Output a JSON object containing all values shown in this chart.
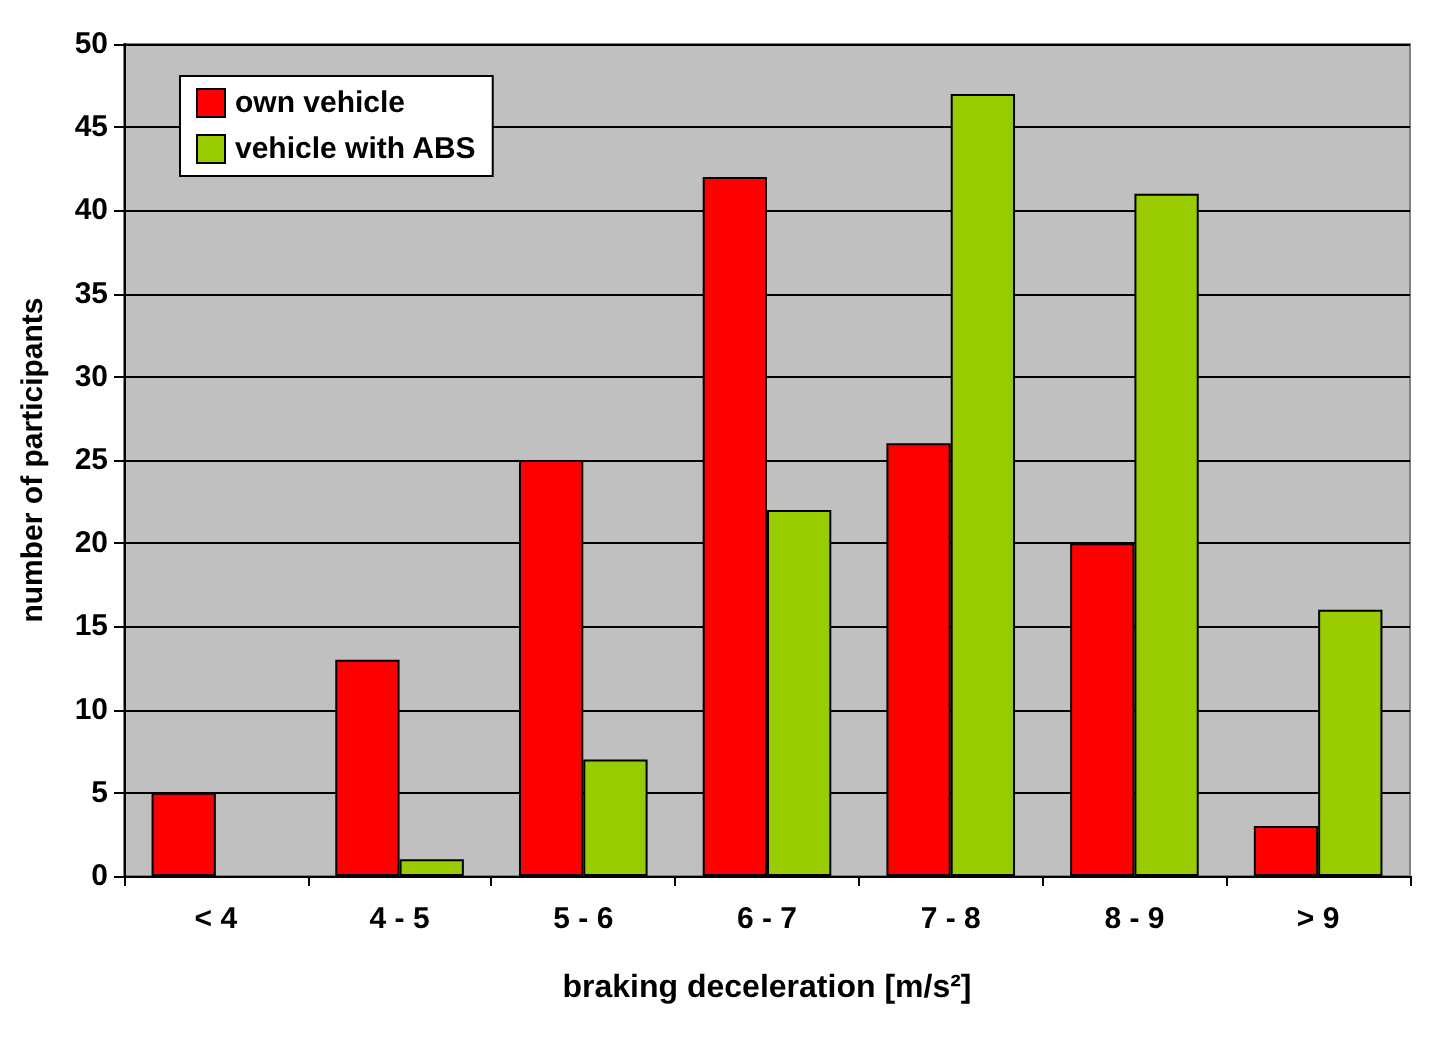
{
  "chart_data": {
    "type": "bar",
    "xlabel": "braking deceleration [m/s²]",
    "ylabel": "number of participants",
    "categories": [
      "< 4",
      "4 - 5",
      "5 - 6",
      "6 - 7",
      "7 - 8",
      "8 - 9",
      "> 9"
    ],
    "series": [
      {
        "name": "own vehicle",
        "color": "#ff0000",
        "values": [
          5,
          13,
          25,
          42,
          26,
          20,
          3
        ]
      },
      {
        "name": "vehicle with ABS",
        "color": "#99cc00",
        "values": [
          null,
          1,
          7,
          22,
          47,
          41,
          16
        ]
      }
    ],
    "ylim": [
      0,
      50
    ],
    "yticks": [
      0,
      5,
      10,
      15,
      20,
      25,
      30,
      35,
      40,
      45,
      50
    ],
    "grid": "y",
    "legend": "top left"
  }
}
